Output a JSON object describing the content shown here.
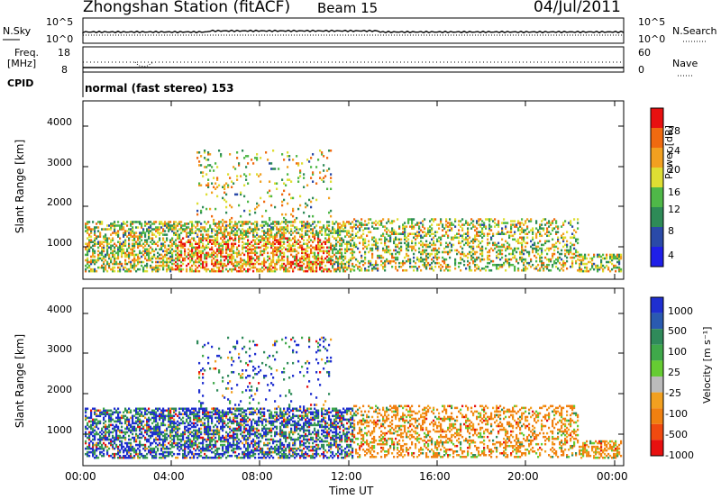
{
  "header": {
    "station_title": "Zhongshan Station (fitACF)",
    "beam": "Beam 15",
    "date": "04/Jul/2011"
  },
  "top_panels": {
    "nsky_label": "N.Sky",
    "nsearch_label": "N.Search",
    "log_tick_high": "10^5",
    "log_tick_low": "10^0",
    "freq_label_1": "Freq.",
    "freq_label_2": "[MHz]",
    "freq_tick_high": "18",
    "freq_tick_low": "8",
    "nave_label": "Nave",
    "nave_tick_high": "60",
    "nave_tick_low": "0",
    "cpid_label": "CPID",
    "cpid_text": "normal (fast stereo) 153"
  },
  "chart_data": [
    {
      "type": "heatmap",
      "name": "power",
      "ylabel": "Slant Range [km]",
      "xlabel": "Time UT",
      "y_ticks": [
        "1000",
        "2000",
        "3000",
        "4000"
      ],
      "colorbar_label": "Power [dB]",
      "colorbar_ticks": [
        "4",
        "8",
        "12",
        "16",
        "20",
        "24",
        "28"
      ],
      "colors": [
        "#1f1fe8",
        "#2a4aa8",
        "#2e8b57",
        "#4fb848",
        "#dede33",
        "#f2a020",
        "#f06a10",
        "#e81010"
      ]
    },
    {
      "type": "heatmap",
      "name": "velocity",
      "ylabel": "Slant Range [km]",
      "xlabel": "Time UT",
      "y_ticks": [
        "1000",
        "2000",
        "3000",
        "4000"
      ],
      "colorbar_label": "Velocity [m s⁻¹]",
      "colorbar_ticks": [
        "1000",
        "500",
        "100",
        "25",
        "-25",
        "-100",
        "-500",
        "-1000"
      ],
      "colors": [
        "#1f2fd0",
        "#2a5ab0",
        "#2f8a5a",
        "#3fa84a",
        "#66cc33",
        "#bbbbbb",
        "#f2a020",
        "#f08010",
        "#f04a10",
        "#e81010"
      ]
    }
  ],
  "x_axis": {
    "ticks": [
      "00:00",
      "04:00",
      "08:00",
      "12:00",
      "16:00",
      "20:00",
      "00:00"
    ],
    "label": "Time UT"
  }
}
